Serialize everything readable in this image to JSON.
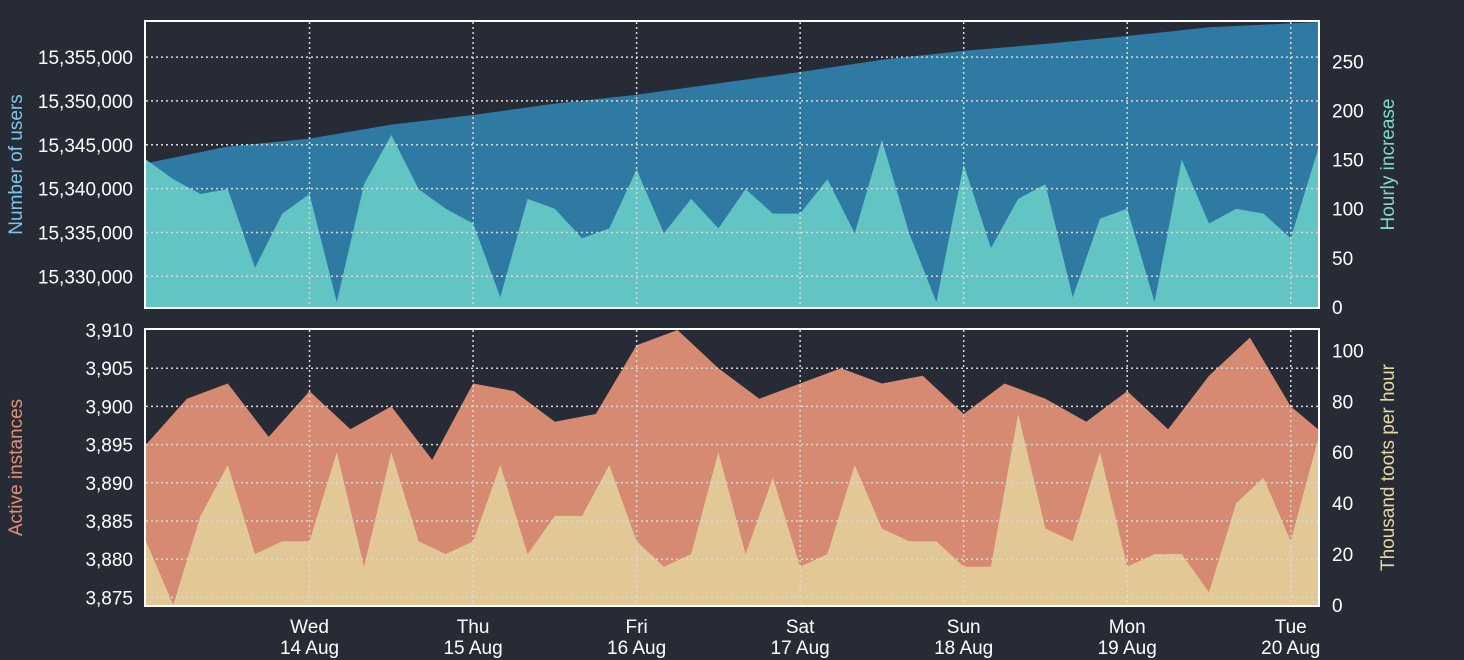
{
  "colors": {
    "background": "#272b36",
    "users": "#2e7aa3",
    "users_label": "#7fc4e6",
    "hourly": "#62c4c3",
    "hourly_label": "#7fd8cf",
    "instances": "#d68a72",
    "instances_label": "#e0907a",
    "toots": "#e2c896",
    "toots_label": "#e4d9a0",
    "axis_text": "#ffffff",
    "frame": "#ffffff",
    "grid": "#d8d8d8"
  },
  "chart_data": [
    {
      "type": "area",
      "panel": "top",
      "x_range": [
        "2019-08-13 12:00",
        "2019-08-20 16:00"
      ],
      "grid": true,
      "left_axis": {
        "label": "Number of users",
        "range": [
          15326500,
          15359000
        ],
        "ticks": [
          15330000,
          15335000,
          15340000,
          15345000,
          15350000,
          15355000
        ],
        "tick_labels": [
          "15,330,000",
          "15,335,000",
          "15,340,000",
          "15,345,000",
          "15,350,000",
          "15,355,000"
        ]
      },
      "right_axis": {
        "label": "Hourly increase",
        "range": [
          0,
          290
        ],
        "ticks": [
          0,
          50,
          100,
          150,
          200,
          250
        ],
        "tick_labels": [
          "0",
          "50",
          "100",
          "150",
          "200",
          "250"
        ]
      },
      "series": [
        {
          "name": "Number of users",
          "axis": "left",
          "points": [
            [
              "2019-08-13 12:00",
              15342900
            ],
            [
              "2019-08-14 00:00",
              15344800
            ],
            [
              "2019-08-14 12:00",
              15345700
            ],
            [
              "2019-08-15 00:00",
              15347300
            ],
            [
              "2019-08-15 12:00",
              15348400
            ],
            [
              "2019-08-16 00:00",
              15349700
            ],
            [
              "2019-08-16 12:00",
              15350700
            ],
            [
              "2019-08-17 00:00",
              15352000
            ],
            [
              "2019-08-17 12:00",
              15353300
            ],
            [
              "2019-08-18 00:00",
              15354700
            ],
            [
              "2019-08-18 12:00",
              15355700
            ],
            [
              "2019-08-19 00:00",
              15356500
            ],
            [
              "2019-08-19 12:00",
              15357400
            ],
            [
              "2019-08-20 00:00",
              15358400
            ],
            [
              "2019-08-20 16:00",
              15359000
            ]
          ]
        },
        {
          "name": "Hourly increase",
          "axis": "right",
          "points": [
            [
              "2019-08-13 12:00",
              150
            ],
            [
              "2019-08-13 16:00",
              130
            ],
            [
              "2019-08-13 20:00",
              115
            ],
            [
              "2019-08-14 00:00",
              120
            ],
            [
              "2019-08-14 04:00",
              40
            ],
            [
              "2019-08-14 08:00",
              95
            ],
            [
              "2019-08-14 12:00",
              115
            ],
            [
              "2019-08-14 16:00",
              5
            ],
            [
              "2019-08-14 20:00",
              125
            ],
            [
              "2019-08-15 00:00",
              175
            ],
            [
              "2019-08-15 04:00",
              120
            ],
            [
              "2019-08-15 08:00",
              100
            ],
            [
              "2019-08-15 12:00",
              85
            ],
            [
              "2019-08-15 16:00",
              10
            ],
            [
              "2019-08-15 20:00",
              110
            ],
            [
              "2019-08-16 00:00",
              100
            ],
            [
              "2019-08-16 04:00",
              70
            ],
            [
              "2019-08-16 08:00",
              80
            ],
            [
              "2019-08-16 12:00",
              140
            ],
            [
              "2019-08-16 16:00",
              75
            ],
            [
              "2019-08-16 20:00",
              110
            ],
            [
              "2019-08-17 00:00",
              80
            ],
            [
              "2019-08-17 04:00",
              120
            ],
            [
              "2019-08-17 08:00",
              95
            ],
            [
              "2019-08-17 12:00",
              95
            ],
            [
              "2019-08-17 16:00",
              130
            ],
            [
              "2019-08-17 20:00",
              75
            ],
            [
              "2019-08-18 00:00",
              170
            ],
            [
              "2019-08-18 04:00",
              75
            ],
            [
              "2019-08-18 08:00",
              5
            ],
            [
              "2019-08-18 12:00",
              145
            ],
            [
              "2019-08-18 16:00",
              60
            ],
            [
              "2019-08-18 20:00",
              110
            ],
            [
              "2019-08-19 00:00",
              125
            ],
            [
              "2019-08-19 04:00",
              10
            ],
            [
              "2019-08-19 08:00",
              90
            ],
            [
              "2019-08-19 12:00",
              100
            ],
            [
              "2019-08-19 16:00",
              5
            ],
            [
              "2019-08-19 20:00",
              150
            ],
            [
              "2019-08-20 00:00",
              85
            ],
            [
              "2019-08-20 04:00",
              100
            ],
            [
              "2019-08-20 08:00",
              95
            ],
            [
              "2019-08-20 12:00",
              70
            ],
            [
              "2019-08-20 16:00",
              160
            ]
          ]
        }
      ]
    },
    {
      "type": "area",
      "panel": "bottom",
      "x_range": [
        "2019-08-13 12:00",
        "2019-08-20 16:00"
      ],
      "grid": true,
      "x_ticks": [
        {
          "date": "2019-08-14 12:00",
          "day": "Wed",
          "label": "14 Aug"
        },
        {
          "date": "2019-08-15 12:00",
          "day": "Thu",
          "label": "15 Aug"
        },
        {
          "date": "2019-08-16 12:00",
          "day": "Fri",
          "label": "16 Aug"
        },
        {
          "date": "2019-08-17 12:00",
          "day": "Sat",
          "label": "17 Aug"
        },
        {
          "date": "2019-08-18 12:00",
          "day": "Sun",
          "label": "18 Aug"
        },
        {
          "date": "2019-08-19 12:00",
          "day": "Mon",
          "label": "19 Aug"
        },
        {
          "date": "2019-08-20 12:00",
          "day": "Tue",
          "label": "20 Aug"
        }
      ],
      "left_axis": {
        "label": "Active instances",
        "range": [
          3874,
          3910
        ],
        "ticks": [
          3875,
          3880,
          3885,
          3890,
          3895,
          3900,
          3905,
          3910
        ],
        "tick_labels": [
          "3,875",
          "3,880",
          "3,885",
          "3,890",
          "3,895",
          "3,900",
          "3,905",
          "3,910"
        ]
      },
      "right_axis": {
        "label": "Thousand toots per hour",
        "range": [
          0,
          108
        ],
        "ticks": [
          0,
          20,
          40,
          60,
          80,
          100
        ],
        "tick_labels": [
          "0",
          "20",
          "40",
          "60",
          "80",
          "100"
        ]
      },
      "series": [
        {
          "name": "Active instances",
          "axis": "left",
          "points": [
            [
              "2019-08-13 12:00",
              3895
            ],
            [
              "2019-08-13 18:00",
              3901
            ],
            [
              "2019-08-14 00:00",
              3903
            ],
            [
              "2019-08-14 06:00",
              3896
            ],
            [
              "2019-08-14 12:00",
              3902
            ],
            [
              "2019-08-14 18:00",
              3897
            ],
            [
              "2019-08-15 00:00",
              3900
            ],
            [
              "2019-08-15 06:00",
              3893
            ],
            [
              "2019-08-15 12:00",
              3903
            ],
            [
              "2019-08-15 18:00",
              3902
            ],
            [
              "2019-08-16 00:00",
              3898
            ],
            [
              "2019-08-16 06:00",
              3899
            ],
            [
              "2019-08-16 12:00",
              3908
            ],
            [
              "2019-08-16 18:00",
              3910
            ],
            [
              "2019-08-17 00:00",
              3905
            ],
            [
              "2019-08-17 06:00",
              3901
            ],
            [
              "2019-08-17 12:00",
              3903
            ],
            [
              "2019-08-17 18:00",
              3905
            ],
            [
              "2019-08-18 00:00",
              3903
            ],
            [
              "2019-08-18 06:00",
              3904
            ],
            [
              "2019-08-18 12:00",
              3899
            ],
            [
              "2019-08-18 18:00",
              3903
            ],
            [
              "2019-08-19 00:00",
              3901
            ],
            [
              "2019-08-19 06:00",
              3898
            ],
            [
              "2019-08-19 12:00",
              3902
            ],
            [
              "2019-08-19 18:00",
              3897
            ],
            [
              "2019-08-20 00:00",
              3904
            ],
            [
              "2019-08-20 06:00",
              3909
            ],
            [
              "2019-08-20 12:00",
              3900
            ],
            [
              "2019-08-20 16:00",
              3897
            ]
          ]
        },
        {
          "name": "Thousand toots per hour",
          "axis": "right",
          "points": [
            [
              "2019-08-13 12:00",
              25
            ],
            [
              "2019-08-13 16:00",
              0
            ],
            [
              "2019-08-13 20:00",
              35
            ],
            [
              "2019-08-14 00:00",
              55
            ],
            [
              "2019-08-14 04:00",
              20
            ],
            [
              "2019-08-14 08:00",
              25
            ],
            [
              "2019-08-14 12:00",
              25
            ],
            [
              "2019-08-14 16:00",
              60
            ],
            [
              "2019-08-14 20:00",
              15
            ],
            [
              "2019-08-15 00:00",
              60
            ],
            [
              "2019-08-15 04:00",
              25
            ],
            [
              "2019-08-15 08:00",
              20
            ],
            [
              "2019-08-15 12:00",
              25
            ],
            [
              "2019-08-15 16:00",
              55
            ],
            [
              "2019-08-15 20:00",
              20
            ],
            [
              "2019-08-16 00:00",
              35
            ],
            [
              "2019-08-16 04:00",
              35
            ],
            [
              "2019-08-16 08:00",
              55
            ],
            [
              "2019-08-16 12:00",
              25
            ],
            [
              "2019-08-16 16:00",
              15
            ],
            [
              "2019-08-16 20:00",
              20
            ],
            [
              "2019-08-17 00:00",
              60
            ],
            [
              "2019-08-17 04:00",
              20
            ],
            [
              "2019-08-17 08:00",
              50
            ],
            [
              "2019-08-17 12:00",
              15
            ],
            [
              "2019-08-17 16:00",
              20
            ],
            [
              "2019-08-17 20:00",
              55
            ],
            [
              "2019-08-18 00:00",
              30
            ],
            [
              "2019-08-18 04:00",
              25
            ],
            [
              "2019-08-18 08:00",
              25
            ],
            [
              "2019-08-18 12:00",
              15
            ],
            [
              "2019-08-18 16:00",
              15
            ],
            [
              "2019-08-18 20:00",
              75
            ],
            [
              "2019-08-19 00:00",
              30
            ],
            [
              "2019-08-19 04:00",
              25
            ],
            [
              "2019-08-19 08:00",
              60
            ],
            [
              "2019-08-19 12:00",
              15
            ],
            [
              "2019-08-19 16:00",
              20
            ],
            [
              "2019-08-19 20:00",
              20
            ],
            [
              "2019-08-20 00:00",
              5
            ],
            [
              "2019-08-20 04:00",
              40
            ],
            [
              "2019-08-20 08:00",
              50
            ],
            [
              "2019-08-20 12:00",
              25
            ],
            [
              "2019-08-20 16:00",
              65
            ]
          ]
        }
      ]
    }
  ]
}
